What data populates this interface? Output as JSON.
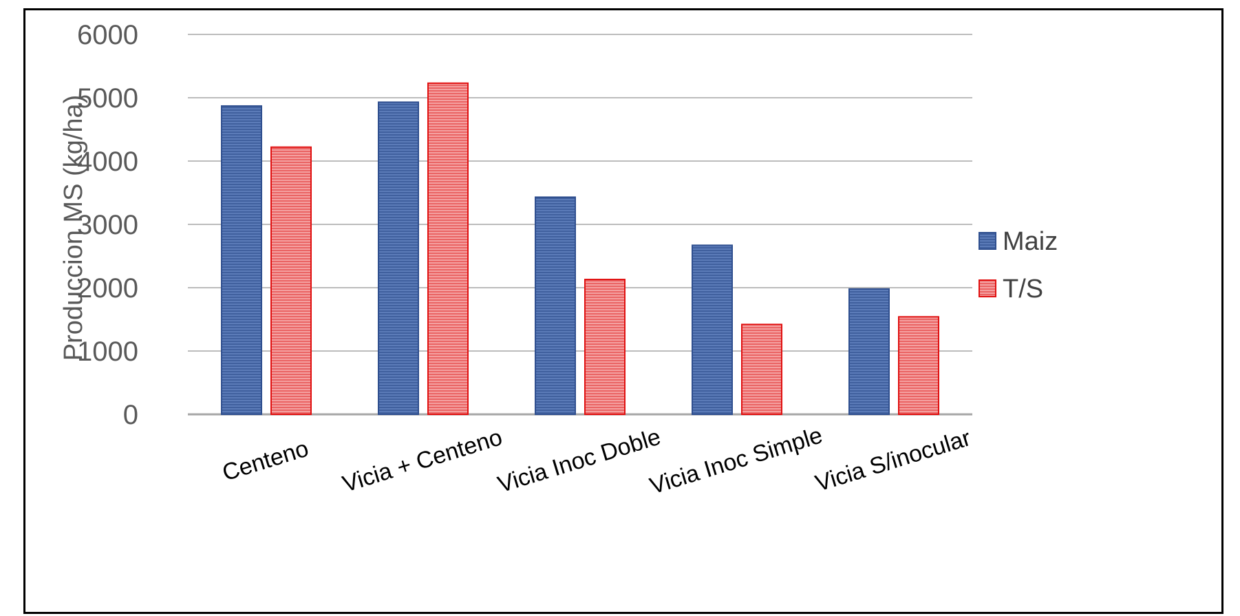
{
  "chart_data": {
    "type": "bar",
    "title": "",
    "xlabel": "",
    "ylabel": "Produccion MS (kg/ha)",
    "ylim": [
      0,
      6000
    ],
    "yticks": [
      "0",
      "1000",
      "2000",
      "3000",
      "4000",
      "5000",
      "6000"
    ],
    "grid": true,
    "legend_position": "right",
    "categories": [
      "Centeno",
      "Vicia + Centeno",
      "Vicia Inoc Doble",
      "Vicia Inoc Simple",
      "Vicia S/inocular"
    ],
    "series": [
      {
        "name": "Maiz",
        "color": "#4a6aa6",
        "edge": "#2f4f8f",
        "values": [
          4870,
          4930,
          3430,
          2670,
          1980
        ]
      },
      {
        "name": "T/S",
        "color": "#f08080",
        "edge": "#e01010",
        "values": [
          4220,
          5230,
          2130,
          1420,
          1540
        ]
      }
    ]
  }
}
